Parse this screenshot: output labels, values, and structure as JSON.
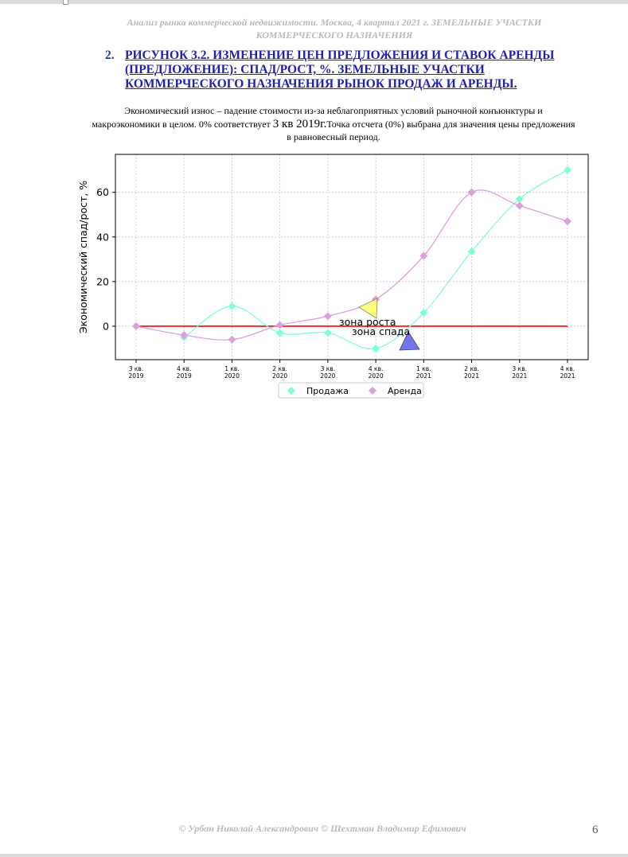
{
  "header": {
    "line1": "Анализ рынка коммерческой недвижимости.   Москва, 4 квартал 2021 г.   ЗЕМЕЛЬНЫЕ УЧАСТКИ",
    "line2": "КОММЕРЧЕСКОГО НАЗНАЧЕНИЯ"
  },
  "heading": {
    "number": "2.",
    "title": "РИСУНОК 3.2. ИЗМЕНЕНИЕ ЦЕН ПРЕДЛОЖЕНИЯ И СТАВОК АРЕНДЫ (ПРЕДЛОЖЕНИЕ): СПАД/РОСТ, %. ЗЕМЕЛЬНЫЕ УЧАСТКИ КОММЕРЧЕСКОГО НАЗНАЧЕНИЯ РЫНОК ПРОДАЖ И АРЕНДЫ."
  },
  "description": {
    "part1": "Экономический износ – падение стоимости из-за неблагоприятных условий рыночной конъюнктуры и макроэкономики в целом. 0% соответствует ",
    "part2": "3 кв 2019г.",
    "part3": "Точка отсчета (0%) выбрана для значения цены предложения в равновесный период."
  },
  "chart_data": {
    "type": "line",
    "categories": [
      [
        "3 кв.",
        "2019"
      ],
      [
        "4 кв.",
        "2019"
      ],
      [
        "1 кв.",
        "2020"
      ],
      [
        "2 кв.",
        "2020"
      ],
      [
        "3 кв.",
        "2020"
      ],
      [
        "4 кв.",
        "2020"
      ],
      [
        "1 кв.",
        "2021"
      ],
      [
        "2 кв.",
        "2021"
      ],
      [
        "3 кв.",
        "2021"
      ],
      [
        "4 кв.",
        "2021"
      ]
    ],
    "series": [
      {
        "name": "Продажа",
        "color": "#7fffd4",
        "marker": "diamond",
        "values": [
          null,
          -5,
          9,
          -3,
          -3,
          -10,
          6,
          33.5,
          57,
          70
        ]
      },
      {
        "name": "Аренда",
        "color": "#dda0dd",
        "marker": "diamond",
        "values": [
          0,
          -4,
          -6,
          0.5,
          4.5,
          12,
          31.5,
          60,
          54,
          47
        ]
      }
    ],
    "baseline": {
      "value": 0,
      "color": "#ff0000"
    },
    "ylabel": "Экономический спад/рост, %",
    "yticks": [
      0,
      20,
      40,
      60
    ],
    "ylim": [
      -15,
      77
    ],
    "grid": true,
    "legend_position": "bottom-center",
    "annotations": [
      {
        "text": "зона роста",
        "x": 5,
        "y": 2,
        "shape": "triangle-up",
        "color": "#ffff66"
      },
      {
        "text": "зона спада",
        "x": 5.7,
        "y": -2.5,
        "shape": "triangle-down",
        "color": "#6666ee"
      }
    ]
  },
  "footer": {
    "authors": "© Урбан Николай Александрович   © Шехтман Владимир Ефимович",
    "page": "6"
  }
}
